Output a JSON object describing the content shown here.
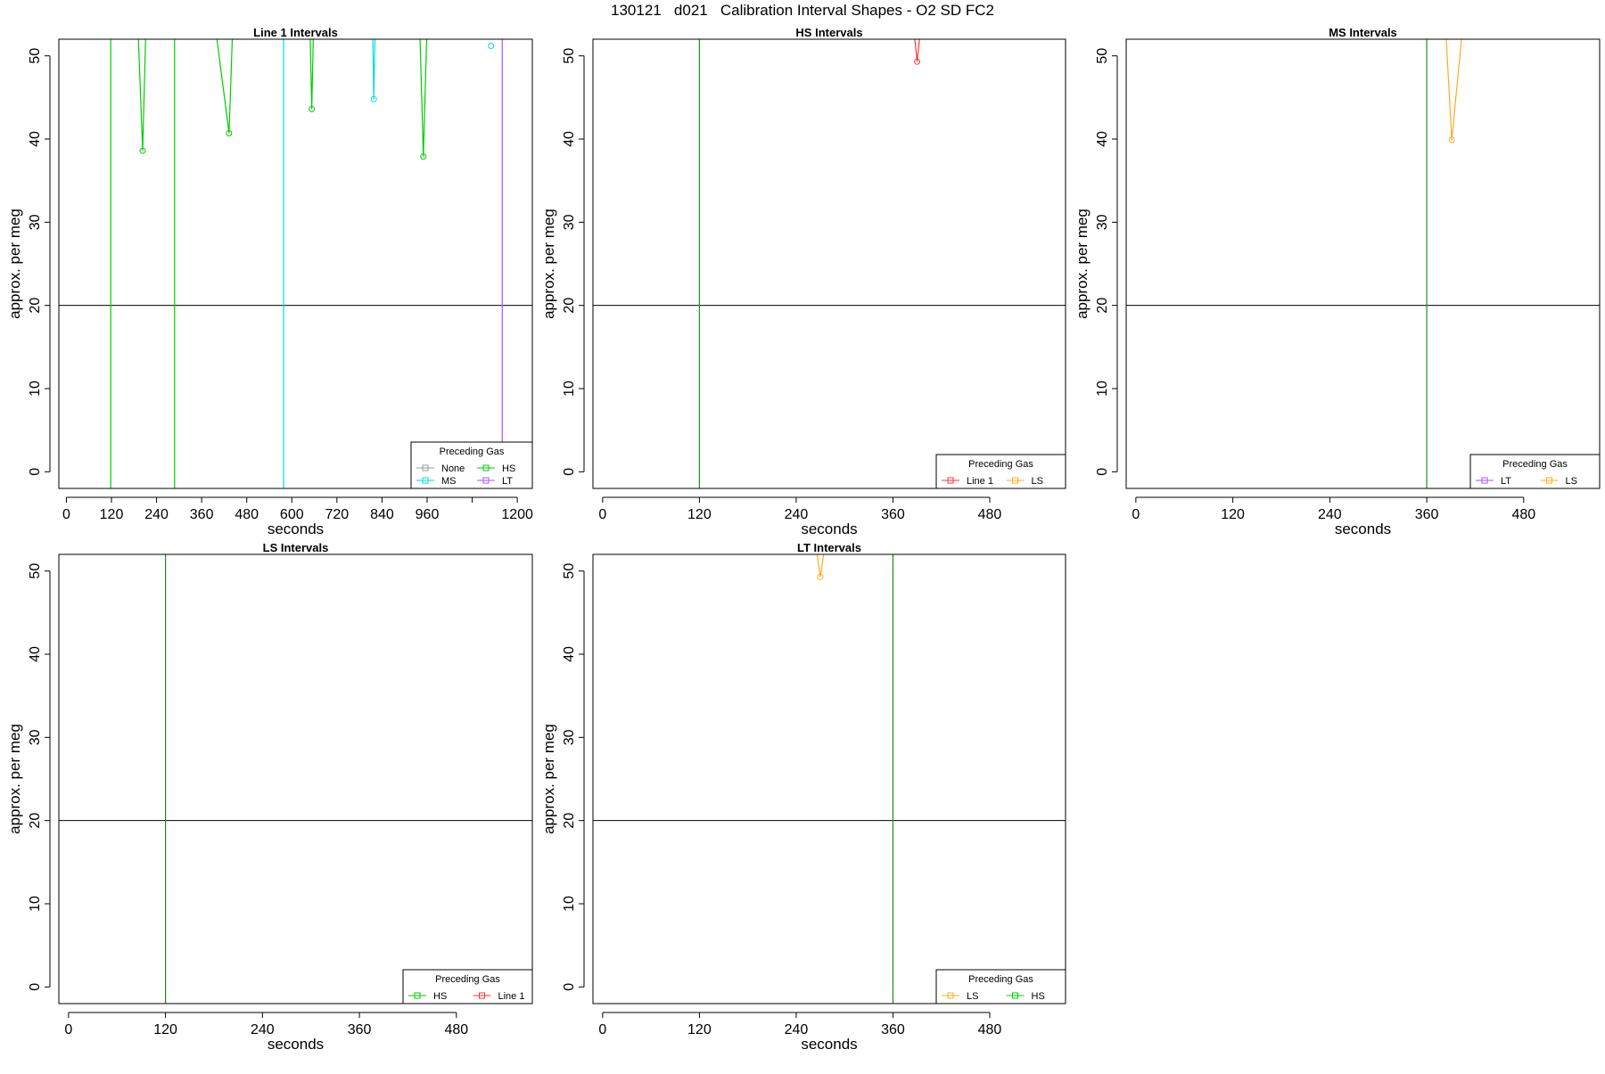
{
  "page_title": "130121   d021   Calibration Interval Shapes - O2 SD FC2",
  "chart_data": [
    {
      "type": "line",
      "title": "Line 1 Intervals",
      "xlabel": "seconds",
      "ylabel": "approx. per meg",
      "xlim": [
        -20,
        1240
      ],
      "ylim": [
        -2,
        52
      ],
      "xticks": [
        0,
        120,
        240,
        360,
        480,
        600,
        720,
        840,
        960,
        1080,
        1200
      ],
      "xtick_labels": [
        "0",
        "120",
        "240",
        "360",
        "480",
        "600",
        "720",
        "840",
        "960",
        "",
        "1200"
      ],
      "yticks": [
        0,
        10,
        20,
        30,
        40,
        50
      ],
      "hlines": [
        20
      ],
      "vlines": [
        {
          "x": 118,
          "color": "#00cc00"
        },
        {
          "x": 288,
          "color": "#00cc00"
        },
        {
          "x": 578,
          "color": "#00dddd"
        },
        {
          "x": 1160,
          "color": "#aa55ff"
        }
      ],
      "legend": {
        "title": "Preceding Gas",
        "position": "bottom-right",
        "columns": 2,
        "entries": [
          {
            "name": "None",
            "color": "#999999"
          },
          {
            "name": "HS",
            "color": "#00cc00"
          },
          {
            "name": "MS",
            "color": "#00dddd"
          },
          {
            "name": "LT",
            "color": "#aa55ff"
          }
        ]
      },
      "series": [
        {
          "color": "#00cc00",
          "x": [
            190,
            203,
            212
          ],
          "y": [
            54,
            38.6,
            54
          ]
        },
        {
          "color": "#00cc00",
          "x": [
            395,
            433,
            443
          ],
          "y": [
            54,
            40.7,
            54
          ]
        },
        {
          "color": "#00cc00",
          "x": [
            648,
            653,
            658
          ],
          "y": [
            54,
            43.6,
            54
          ]
        },
        {
          "color": "#00dddd",
          "x": [
            815,
            818,
            822
          ],
          "y": [
            54,
            44.8,
            54
          ]
        },
        {
          "color": "#00cc00",
          "x": [
            940,
            950,
            960
          ],
          "y": [
            54,
            37.9,
            54
          ]
        },
        {
          "color": "#00dddd",
          "x": [
            1130
          ],
          "y": [
            51.2
          ]
        }
      ]
    },
    {
      "type": "line",
      "title": "HS Intervals",
      "xlabel": "seconds",
      "ylabel": "approx. per meg",
      "xlim": [
        -12,
        574
      ],
      "ylim": [
        -2,
        52
      ],
      "xticks": [
        0,
        120,
        240,
        360,
        480
      ],
      "xtick_labels": [
        "0",
        "120",
        "240",
        "360",
        "480"
      ],
      "yticks": [
        0,
        10,
        20,
        30,
        40,
        50
      ],
      "hlines": [
        20
      ],
      "vlines": [
        {
          "x": 120,
          "color": "#228B22"
        }
      ],
      "legend": {
        "title": "Preceding Gas",
        "position": "bottom-right",
        "columns": 2,
        "entries": [
          {
            "name": "Line 1",
            "color": "#ff3333"
          },
          {
            "name": "LS",
            "color": "#ffaa22"
          }
        ]
      },
      "series": [
        {
          "color": "#ff3333",
          "x": [
            385,
            390,
            395
          ],
          "y": [
            54,
            49.3,
            54
          ]
        }
      ]
    },
    {
      "type": "line",
      "title": "MS Intervals",
      "xlabel": "seconds",
      "ylabel": "approx. per meg",
      "xlim": [
        -12,
        574
      ],
      "ylim": [
        -2,
        52
      ],
      "xticks": [
        0,
        120,
        240,
        360,
        480
      ],
      "xtick_labels": [
        "0",
        "120",
        "240",
        "360",
        "480"
      ],
      "yticks": [
        0,
        10,
        20,
        30,
        40,
        50
      ],
      "hlines": [
        20
      ],
      "vlines": [
        {
          "x": 360,
          "color": "#228B22"
        }
      ],
      "legend": {
        "title": "Preceding Gas",
        "position": "bottom-right",
        "columns": 2,
        "entries": [
          {
            "name": "LT",
            "color": "#aa55ff"
          },
          {
            "name": "LS",
            "color": "#ffaa22"
          }
        ]
      },
      "series": [
        {
          "color": "#ffaa22",
          "x": [
            383,
            391,
            405
          ],
          "y": [
            54,
            39.9,
            54
          ]
        }
      ]
    },
    {
      "type": "line",
      "title": "LS Intervals",
      "xlabel": "seconds",
      "ylabel": "approx. per meg",
      "xlim": [
        -12,
        574
      ],
      "ylim": [
        -2,
        52
      ],
      "xticks": [
        0,
        120,
        240,
        360,
        480
      ],
      "xtick_labels": [
        "0",
        "120",
        "240",
        "360",
        "480"
      ],
      "yticks": [
        0,
        10,
        20,
        30,
        40,
        50
      ],
      "hlines": [
        20
      ],
      "vlines": [
        {
          "x": 120,
          "color": "#228B22"
        }
      ],
      "legend": {
        "title": "Preceding Gas",
        "position": "bottom-right",
        "columns": 2,
        "entries": [
          {
            "name": "HS",
            "color": "#00cc00"
          },
          {
            "name": "Line 1",
            "color": "#ff3333"
          }
        ]
      },
      "series": []
    },
    {
      "type": "line",
      "title": "LT Intervals",
      "xlabel": "seconds",
      "ylabel": "approx. per meg",
      "xlim": [
        -12,
        574
      ],
      "ylim": [
        -2,
        52
      ],
      "xticks": [
        0,
        120,
        240,
        360,
        480
      ],
      "xtick_labels": [
        "0",
        "120",
        "240",
        "360",
        "480"
      ],
      "yticks": [
        0,
        10,
        20,
        30,
        40,
        50
      ],
      "hlines": [
        20
      ],
      "vlines": [
        {
          "x": 360,
          "color": "#228B22"
        }
      ],
      "legend": {
        "title": "Preceding Gas",
        "position": "bottom-right",
        "columns": 2,
        "entries": [
          {
            "name": "LS",
            "color": "#ffaa22"
          },
          {
            "name": "HS",
            "color": "#00cc00"
          }
        ]
      },
      "series": [
        {
          "color": "#ffaa22",
          "x": [
            263,
            270,
            277
          ],
          "y": [
            54,
            49.3,
            54
          ]
        }
      ]
    }
  ]
}
